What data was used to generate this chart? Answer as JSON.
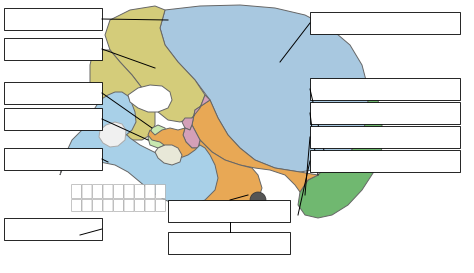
{
  "bg_color": "#ffffff",
  "colors": {
    "frontal": "#d4cc7a",
    "parietal": "#a8c8e0",
    "temporal": "#e8a855",
    "occipital": "#70b870",
    "sphenoid": "#d4a0b8",
    "mandible": "#a8d0e8",
    "maxilla": "#a8d0e8",
    "face": "#d4cc7a",
    "lacrimal": "#c8e8b0",
    "nasal_bone": "#d4cc7a",
    "zygomatic": "#e8a855",
    "teeth": "#ffffff",
    "nasal_cavity": "#ffffff",
    "bone_white": "#e8e8d8"
  },
  "edge_color": "#666666",
  "line_color": "#111111"
}
